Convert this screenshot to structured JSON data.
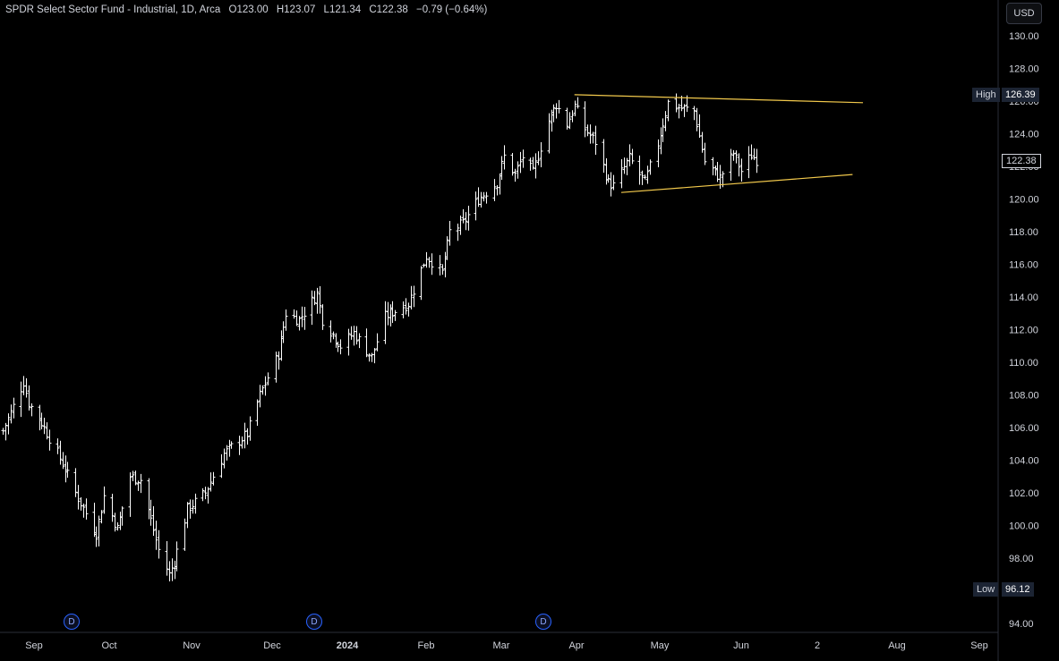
{
  "header": {
    "symbol": "SPDR Select Sector Fund - Industrial, 1D, Arca",
    "open": "O123.00",
    "high": "H123.07",
    "low": "L121.34",
    "close": "C122.38",
    "change": "−0.79 (−0.64%)"
  },
  "currency_button": "USD",
  "price_tags": {
    "high_label": "High",
    "high_value": "126.39",
    "low_label": "Low",
    "low_value": "96.12",
    "last_value": "122.38"
  },
  "dividend_marker": "D",
  "colors": {
    "background": "#000000",
    "bars": "#ffffff",
    "trendline": "#f2c94c",
    "axis_text": "#d1d4dc"
  },
  "chart_data": {
    "type": "ohlc",
    "title": "SPDR Select Sector Fund - Industrial, 1D, Arca",
    "y_axis": {
      "ticks": [
        "130.00",
        "128.00",
        "126.00",
        "124.00",
        "122.00",
        "120.00",
        "118.00",
        "116.00",
        "114.00",
        "112.00",
        "110.00",
        "108.00",
        "106.00",
        "104.00",
        "102.00",
        "100.00",
        "98.00",
        "96.00",
        "94.00"
      ],
      "range": [
        93.5,
        130.8
      ]
    },
    "x_axis": {
      "labels": [
        "Sep",
        "Oct",
        "Nov",
        "Dec",
        "2024",
        "Feb",
        "Mar",
        "Apr",
        "May",
        "Jun",
        "2",
        "Aug",
        "Sep"
      ],
      "range": [
        "2023-08-27",
        "2024-09-14"
      ]
    },
    "path_points": [
      [
        "2023-08-28",
        105.8
      ],
      [
        "2023-09-05",
        108.8
      ],
      [
        "2023-09-07",
        107.5
      ],
      [
        "2023-09-12",
        106.3
      ],
      [
        "2023-09-20",
        103.8
      ],
      [
        "2023-09-25",
        102.0
      ],
      [
        "2023-10-03",
        99.5
      ],
      [
        "2023-10-06",
        101.8
      ],
      [
        "2023-10-11",
        99.8
      ],
      [
        "2023-10-16",
        103.0
      ],
      [
        "2023-10-20",
        102.8
      ],
      [
        "2023-10-27",
        98.5
      ],
      [
        "2023-10-31",
        97.0
      ],
      [
        "2023-11-02",
        97.8
      ],
      [
        "2023-11-07",
        101.0
      ],
      [
        "2023-11-14",
        102.0
      ],
      [
        "2023-11-21",
        104.4
      ],
      [
        "2023-11-30",
        105.6
      ],
      [
        "2023-12-05",
        108.0
      ],
      [
        "2023-12-12",
        110.5
      ],
      [
        "2023-12-15",
        113.0
      ],
      [
        "2023-12-20",
        112.6
      ],
      [
        "2023-12-27",
        114.2
      ],
      [
        "2023-12-29",
        112.6
      ],
      [
        "2024-01-05",
        111.0
      ],
      [
        "2024-01-10",
        111.8
      ],
      [
        "2024-01-17",
        110.3
      ],
      [
        "2024-01-22",
        112.8
      ],
      [
        "2024-01-31",
        113.6
      ],
      [
        "2024-02-07",
        116.5
      ],
      [
        "2024-02-13",
        115.5
      ],
      [
        "2024-02-16",
        118.0
      ],
      [
        "2024-02-21",
        118.5
      ],
      [
        "2024-02-27",
        120.0
      ],
      [
        "2024-03-05",
        121.0
      ],
      [
        "2024-03-08",
        122.6
      ],
      [
        "2024-03-12",
        121.5
      ],
      [
        "2024-03-15",
        122.6
      ],
      [
        "2024-03-19",
        121.6
      ],
      [
        "2024-03-25",
        124.8
      ],
      [
        "2024-03-28",
        125.8
      ],
      [
        "2024-04-01",
        124.6
      ],
      [
        "2024-04-04",
        125.7
      ],
      [
        "2024-04-08",
        124.3
      ],
      [
        "2024-04-12",
        123.5
      ],
      [
        "2024-04-17",
        121.0
      ],
      [
        "2024-04-19",
        120.8
      ],
      [
        "2024-04-25",
        122.5
      ],
      [
        "2024-05-01",
        121.0
      ],
      [
        "2024-05-06",
        123.4
      ],
      [
        "2024-05-10",
        125.9
      ],
      [
        "2024-05-14",
        125.6
      ],
      [
        "2024-05-20",
        125.4
      ],
      [
        "2024-05-24",
        122.3
      ],
      [
        "2024-05-30",
        121.3
      ],
      [
        "2024-06-04",
        122.8
      ],
      [
        "2024-06-07",
        121.7
      ],
      [
        "2024-06-11",
        122.7
      ],
      [
        "2024-06-13",
        122.4
      ]
    ],
    "trendlines": [
      {
        "name": "upper",
        "from": [
          "2024-04-04",
          126.39
        ],
        "to": [
          "2024-07-24",
          125.9
        ]
      },
      {
        "name": "lower",
        "from": [
          "2024-04-22",
          120.4
        ],
        "to": [
          "2024-07-20",
          121.5
        ]
      }
    ],
    "dividend_dates": [
      "2023-09-18",
      "2023-12-18",
      "2024-03-18"
    ],
    "high": 126.39,
    "low": 96.12,
    "last": 122.38,
    "grid": false,
    "legend": "none"
  }
}
